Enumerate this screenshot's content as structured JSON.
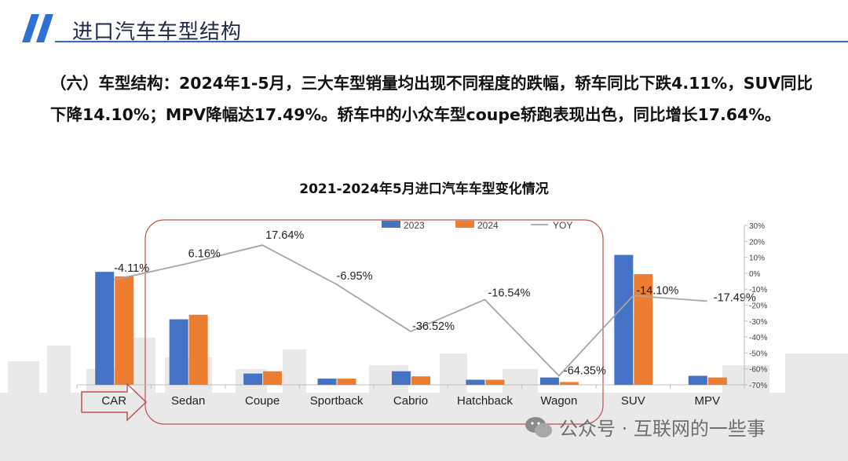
{
  "header": {
    "title": "进口汽车车型结构"
  },
  "description": "（六）车型结构：2024年1-5月，三大车型销量均出现不同程度的跌幅，轿车同比下跌4.11%，SUV同比下降14.10%；MPV降幅达17.49%。轿车中的小众车型coupe轿跑表现出色，同比增长17.64%。",
  "watermark": {
    "text": "公众号 · 互联网的一些事"
  },
  "chart_data": {
    "type": "bar",
    "title": "2021-2024年5月进口汽车车型变化情况",
    "categories": [
      "CAR",
      "Sedan",
      "Coupe",
      "Sportback",
      "Cabrio",
      "Hatchback",
      "Wagon",
      "SUV",
      "MPV"
    ],
    "series": [
      {
        "name": "2023",
        "type": "bar",
        "color": "#4472C4",
        "values": [
          100,
          58,
          10,
          5.5,
          12,
          4.5,
          6.5,
          115,
          8
        ]
      },
      {
        "name": "2024",
        "type": "bar",
        "color": "#ED7D31",
        "values": [
          96,
          62,
          12,
          5.5,
          7.5,
          4.5,
          2.5,
          98,
          6.5
        ]
      },
      {
        "name": "YOY",
        "type": "line",
        "color": "#A6A6A6",
        "axis": "right",
        "values": [
          -4.11,
          6.16,
          17.64,
          -6.95,
          -36.52,
          -16.54,
          -64.35,
          -14.1,
          -17.49
        ],
        "labels": [
          "-4.11%",
          "6.16%",
          "17.64%",
          "-6.95%",
          "-36.52%",
          "-16.54%",
          "-64.35%",
          "-14.10%",
          "-17.49%"
        ]
      }
    ],
    "ylim": [
      0,
      146
    ],
    "y2lim": [
      -70,
      30
    ],
    "y2ticks": [
      30,
      20,
      10,
      0,
      -10,
      -20,
      -30,
      -40,
      -50,
      -60,
      -70
    ],
    "y2tick_labels": [
      "30%",
      "20%",
      "10%",
      "0%",
      "-10%",
      "-20%",
      "-30%",
      "-40%",
      "-50%",
      "-60%",
      "-70%"
    ],
    "legend": "top-center",
    "grid": false
  }
}
